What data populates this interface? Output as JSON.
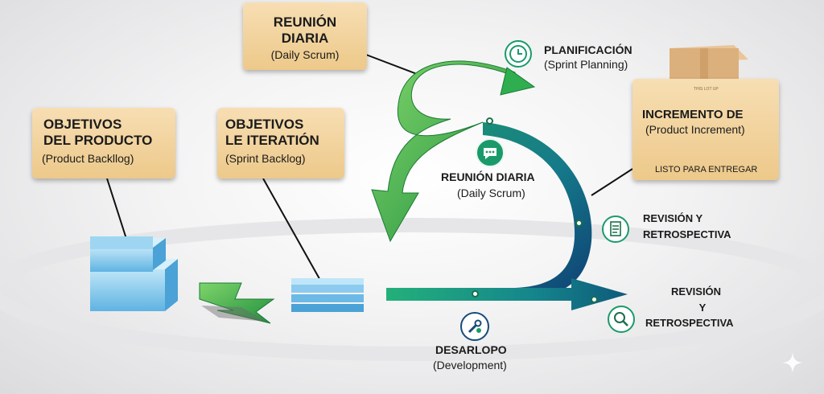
{
  "daily_scrum_card": {
    "line1": "REUNIÓN",
    "line2": "DIARIA",
    "sub": "(Daily Scrum)"
  },
  "product_backlog": {
    "line1": "OBJETIVOS",
    "line2": "DEL PRODUCTO",
    "sub": "(Product Backllog)"
  },
  "sprint_backlog": {
    "line1": "OBJETIVOS",
    "line2": "LE ITERATIÓN",
    "sub": "(Sprint Backlog)"
  },
  "planning": {
    "title": "PLANIFICACIÓN",
    "sub": "(Sprint Planning)"
  },
  "daily_scrum_center": {
    "title": "REUNIÓN DIARIA",
    "sub": "(Daily Scrum)"
  },
  "increment": {
    "title": "INCREMENTO DE",
    "sub": "(Product Increment)",
    "footer": "LISTO PARA ENTREGAR",
    "box_label": "THIS LOT UP"
  },
  "review_right": {
    "line1": "REVISIÓN Y",
    "line2": "RETROSPECTIVA"
  },
  "review_bottom": {
    "line1": "REVISIÓN",
    "line2": "Y",
    "line3": "RETROSPECTIVA"
  },
  "development": {
    "title": "DESARLOPO",
    "sub": "(Development)"
  },
  "colors": {
    "card": "#edc98a",
    "green": "#2fae4f",
    "teal": "#1a8a8a",
    "navy": "#17406e",
    "blue_block": "#7cc3ea"
  },
  "icons": [
    "clock-icon",
    "chat-icon",
    "checklist-icon",
    "wrench-gear-icon",
    "magnifier-icon",
    "sparkle-icon",
    "cardboard-box-icon"
  ]
}
